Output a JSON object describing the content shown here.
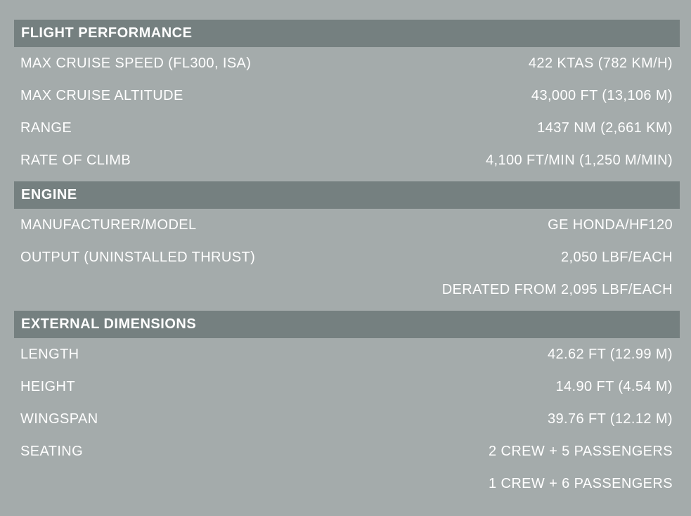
{
  "colors": {
    "page_background": "#a4abab",
    "section_header_background": "#758080",
    "text": "#ffffff"
  },
  "sections": [
    {
      "title": "FLIGHT PERFORMANCE",
      "rows": [
        {
          "label": "MAX CRUISE SPEED (FL300, ISA)",
          "value": "422 KTAS (782 KM/H)"
        },
        {
          "label": "MAX CRUISE ALTITUDE",
          "value": "43,000 FT (13,106 M)"
        },
        {
          "label": "RANGE",
          "value": "1437 NM (2,661 KM)"
        },
        {
          "label": "RATE OF CLIMB",
          "value": "4,100 FT/MIN (1,250 M/MIN)"
        }
      ]
    },
    {
      "title": "ENGINE",
      "rows": [
        {
          "label": "MANUFACTURER/MODEL",
          "value": "GE HONDA/HF120"
        },
        {
          "label": "OUTPUT (UNINSTALLED THRUST)",
          "value": "2,050 LBF/EACH"
        },
        {
          "label": "",
          "value": "DERATED FROM 2,095 LBF/EACH"
        }
      ]
    },
    {
      "title": "EXTERNAL DIMENSIONS",
      "rows": [
        {
          "label": "LENGTH",
          "value": "42.62 FT (12.99 M)"
        },
        {
          "label": "HEIGHT",
          "value": "14.90 FT (4.54 M)"
        },
        {
          "label": "WINGSPAN",
          "value": "39.76 FT (12.12 M)"
        },
        {
          "label": "SEATING",
          "value": "2 CREW + 5 PASSENGERS"
        },
        {
          "label": "",
          "value": "1 CREW + 6 PASSENGERS"
        }
      ]
    }
  ]
}
